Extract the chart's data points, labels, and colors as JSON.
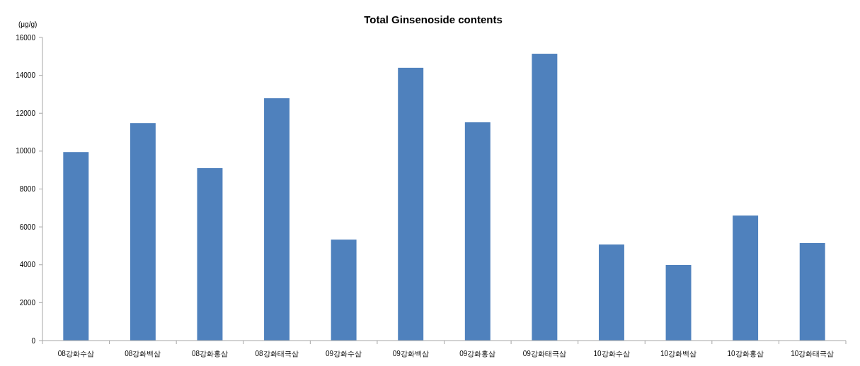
{
  "chart_data": {
    "type": "bar",
    "title": "Total Ginsenoside contents",
    "ylabel": "(μg/g)",
    "categories": [
      "08강화수삼",
      "08강화백삼",
      "08강화홍삼",
      "08강화태극삼",
      "09강화수삼",
      "09강화백삼",
      "09강화홍삼",
      "09강화태극삼",
      "10강화수삼",
      "10강화백삼",
      "10강화홍삼",
      "10강화태극삼"
    ],
    "values": [
      9950,
      11480,
      9100,
      12790,
      5330,
      14400,
      11520,
      15140,
      5070,
      3990,
      6600,
      5150
    ],
    "color": "#4f81bd",
    "ylim": [
      0,
      16000
    ],
    "yticks": [
      0,
      2000,
      4000,
      6000,
      8000,
      10000,
      12000,
      14000,
      16000
    ],
    "grid": false
  }
}
